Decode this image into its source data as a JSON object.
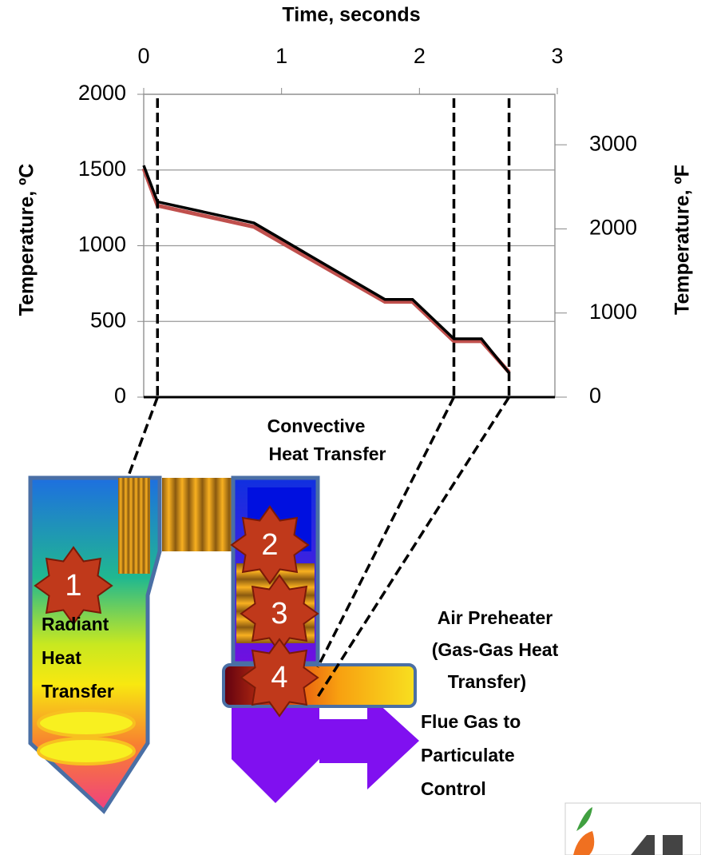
{
  "chart_data": {
    "type": "line",
    "title": "Time, seconds",
    "y_label": "Temperature, ºC",
    "y2_label": "Temperature, ºF",
    "x": [
      0,
      0.1,
      0.8,
      1.75,
      1.95,
      2.25,
      2.45,
      2.65
    ],
    "series": [
      {
        "color": "#c0504d",
        "values": [
          1510,
          1265,
          1125,
          630,
          630,
          370,
          370,
          165
        ]
      },
      {
        "color": "#000000",
        "values": [
          1530,
          1290,
          1150,
          645,
          645,
          385,
          385,
          160
        ]
      }
    ],
    "xlim": [
      0,
      3
    ],
    "xticks": [
      0,
      1,
      2,
      3
    ],
    "ylim": [
      0,
      2000
    ],
    "yticks": [
      0,
      500,
      1000,
      1500,
      2000
    ],
    "y2lim": [
      0,
      3600
    ],
    "y2ticks": [
      0,
      1000,
      2000,
      3000
    ],
    "grid": true,
    "vlines": [
      0.1,
      2.25,
      2.65
    ]
  },
  "diagram": {
    "convective_label": [
      "Convective",
      "Heat Transfer"
    ],
    "radiant_label": [
      "Radiant",
      "Heat",
      "Transfer"
    ],
    "air_preheater_label": [
      "Air Preheater",
      "(Gas-Gas Heat",
      "Transfer)"
    ],
    "flue_gas_label": [
      "Flue Gas to",
      "Particulate",
      "Control"
    ],
    "zones": [
      "1",
      "2",
      "3",
      "4"
    ]
  }
}
